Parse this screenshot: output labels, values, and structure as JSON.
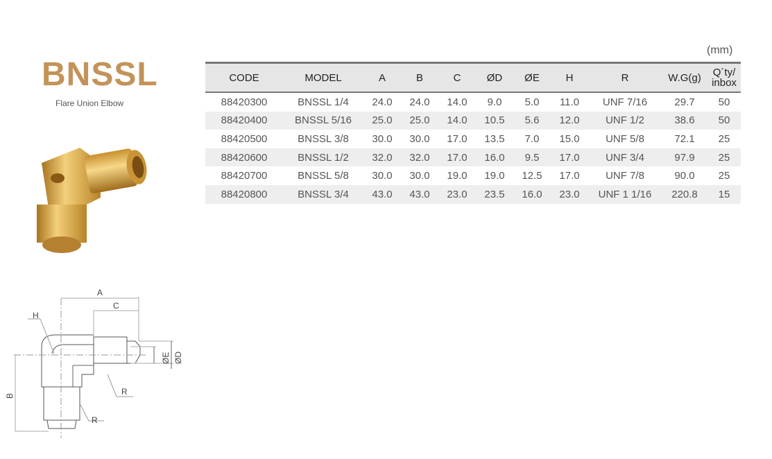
{
  "product": {
    "title": "BNSSL",
    "subtitle": "Flare Union Elbow"
  },
  "unit": "(mm)",
  "table": {
    "headers": [
      "CODE",
      "MODEL",
      "A",
      "B",
      "C",
      "ØD",
      "ØE",
      "H",
      "R",
      "W.G(g)",
      "Q´ty/\ninbox"
    ],
    "rows": [
      [
        "88420300",
        "BNSSL 1/4",
        "24.0",
        "24.0",
        "14.0",
        "9.0",
        "5.0",
        "11.0",
        "UNF 7/16",
        "29.7",
        "50"
      ],
      [
        "88420400",
        "BNSSL 5/16",
        "25.0",
        "25.0",
        "14.0",
        "10.5",
        "5.6",
        "12.0",
        "UNF 1/2",
        "38.6",
        "50"
      ],
      [
        "88420500",
        "BNSSL 3/8",
        "30.0",
        "30.0",
        "17.0",
        "13.5",
        "7.0",
        "15.0",
        "UNF 5/8",
        "72.1",
        "25"
      ],
      [
        "88420600",
        "BNSSL 1/2",
        "32.0",
        "32.0",
        "17.0",
        "16.0",
        "9.5",
        "17.0",
        "UNF 3/4",
        "97.9",
        "25"
      ],
      [
        "88420700",
        "BNSSL 5/8",
        "30.0",
        "30.0",
        "19.0",
        "19.0",
        "12.5",
        "17.0",
        "UNF 7/8",
        "90.0",
        "25"
      ],
      [
        "88420800",
        "BNSSL 3/4",
        "43.0",
        "43.0",
        "23.0",
        "23.5",
        "16.0",
        "23.0",
        "UNF 1 1/16",
        "220.8",
        "15"
      ]
    ]
  },
  "drawing": {
    "labels": {
      "A": "A",
      "B": "B",
      "C": "C",
      "D": "ØD",
      "E": "ØE",
      "H": "H",
      "R1": "R",
      "R2": "R"
    }
  },
  "colors": {
    "title": "#c4935a",
    "brass": "#d9a948",
    "header_bg": "#e6e6e6",
    "row_alt": "#eeeeee"
  }
}
